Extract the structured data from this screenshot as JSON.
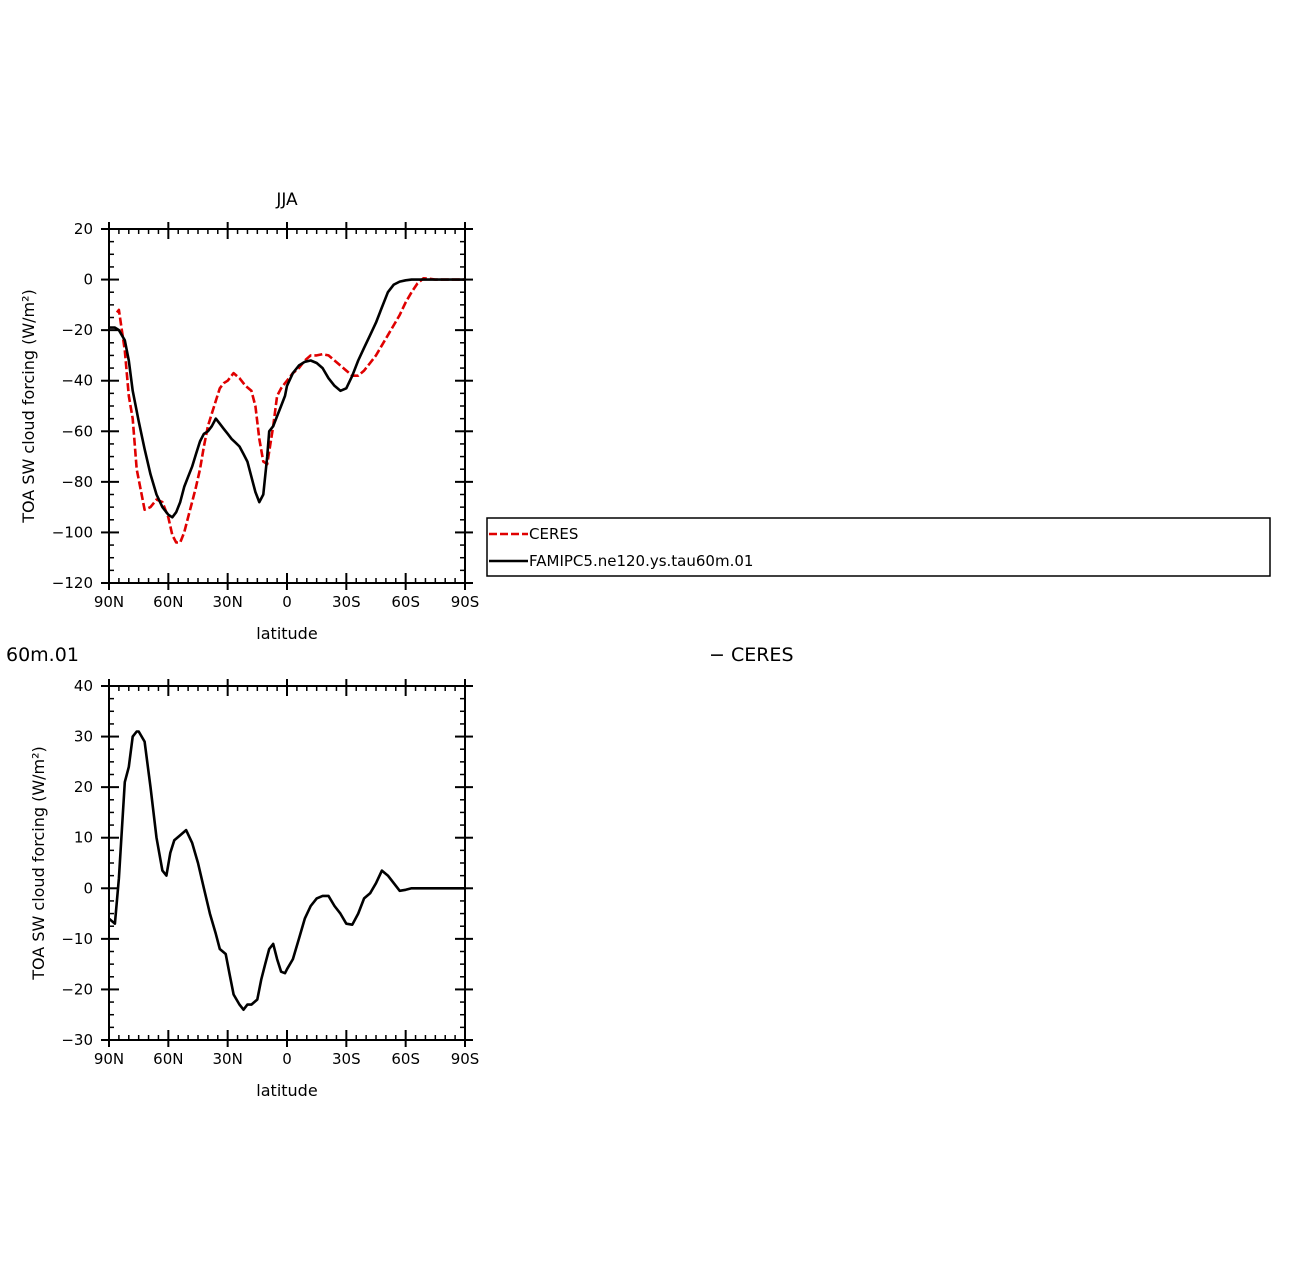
{
  "chart_data": [
    {
      "type": "line",
      "title": "JJA",
      "xlabel": "latitude",
      "ylabel": "TOA SW cloud forcing (W/m²)",
      "xlim": [
        -90,
        90
      ],
      "ylim": [
        -120,
        20
      ],
      "xticks": [
        -90,
        -60,
        -30,
        0,
        30,
        60,
        90
      ],
      "xtick_labels": [
        "90N",
        "60N",
        "30N",
        "0",
        "30S",
        "60S",
        "90S"
      ],
      "yticks": [
        20,
        0,
        -20,
        -40,
        -60,
        -80,
        -100,
        -120
      ],
      "ytick_labels": [
        "20",
        "0",
        "−20",
        "−40",
        "−60",
        "−80",
        "−100",
        "−120"
      ],
      "legend": "right",
      "series": [
        {
          "name": "CERES",
          "color": "#e00000",
          "dash": "dashed",
          "x": [
            -86,
            -85,
            -82,
            -80,
            -78,
            -76,
            -72,
            -69,
            -66,
            -63,
            -60,
            -58,
            -56,
            -54,
            -52,
            -50,
            -48,
            -46,
            -44,
            -42,
            -40,
            -38,
            -36,
            -34,
            -32,
            -30,
            -27,
            -24,
            -21,
            -18,
            -16,
            -14,
            -12,
            -10,
            -9,
            -7,
            -5,
            -3,
            -1,
            0,
            3,
            6,
            9,
            12,
            15,
            18,
            21,
            24,
            27,
            30,
            33,
            36,
            39,
            42,
            45,
            48,
            51,
            54,
            57,
            60,
            63,
            66,
            69,
            72,
            75,
            78,
            81,
            84,
            87,
            90
          ],
          "y": [
            -13,
            -12,
            -28,
            -46,
            -55,
            -75,
            -91,
            -90,
            -87,
            -88,
            -94,
            -101,
            -104,
            -104,
            -100,
            -94,
            -88,
            -82,
            -75,
            -66,
            -58,
            -53,
            -48,
            -43,
            -41,
            -40,
            -37,
            -39,
            -42,
            -44,
            -50,
            -63,
            -72,
            -73,
            -68,
            -58,
            -46,
            -43,
            -41,
            -40,
            -37,
            -35,
            -32,
            -30,
            -30,
            -29.5,
            -30,
            -32,
            -34,
            -36,
            -38,
            -38,
            -36,
            -33,
            -30,
            -26,
            -22,
            -18,
            -14,
            -9,
            -5,
            -1.5,
            0.5,
            0.3,
            0,
            0,
            0,
            0,
            0,
            0
          ]
        },
        {
          "name": "FAMIPC5.ne120.ys.tau60m.01",
          "color": "#000000",
          "dash": "solid",
          "x": [
            -90,
            -87,
            -85,
            -82,
            -80,
            -78,
            -75,
            -72,
            -69,
            -66,
            -63,
            -60,
            -58,
            -56,
            -54,
            -52,
            -50,
            -48,
            -46,
            -44,
            -42,
            -40,
            -38,
            -36,
            -34,
            -32,
            -30,
            -28,
            -26,
            -24,
            -22,
            -20,
            -18,
            -16,
            -14,
            -12,
            -10,
            -9,
            -7,
            -5,
            -3,
            -1,
            0,
            3,
            6,
            9,
            12,
            15,
            18,
            21,
            24,
            27,
            30,
            33,
            36,
            39,
            42,
            45,
            48,
            51,
            54,
            57,
            60,
            63,
            66,
            69,
            72,
            75,
            78,
            81,
            84,
            87,
            90
          ],
          "y": [
            -19,
            -19,
            -20,
            -24,
            -32,
            -44,
            -56,
            -67,
            -77,
            -85,
            -90,
            -93,
            -94,
            -92,
            -88,
            -82,
            -78,
            -74,
            -69,
            -64,
            -61,
            -60,
            -58,
            -55,
            -57,
            -59,
            -61,
            -63,
            -64.5,
            -66,
            -69,
            -72,
            -78,
            -84,
            -88,
            -85,
            -70,
            -60,
            -58,
            -54,
            -50,
            -46,
            -42,
            -37,
            -34,
            -32.5,
            -32,
            -33,
            -35,
            -39,
            -42,
            -44,
            -43,
            -38,
            -32,
            -27,
            -22,
            -17,
            -11,
            -5,
            -2,
            -0.8,
            -0.3,
            0,
            0,
            0,
            0,
            0,
            0,
            0,
            0,
            0,
            0
          ]
        }
      ]
    },
    {
      "type": "line",
      "title_left": "60m.01",
      "title_right": "− CERES",
      "xlabel": "latitude",
      "ylabel": "TOA SW cloud forcing (W/m²)",
      "xlim": [
        -90,
        90
      ],
      "ylim": [
        -30,
        40
      ],
      "xticks": [
        -90,
        -60,
        -30,
        0,
        30,
        60,
        90
      ],
      "xtick_labels": [
        "90N",
        "60N",
        "30N",
        "0",
        "30S",
        "60S",
        "90S"
      ],
      "yticks": [
        40,
        30,
        20,
        10,
        0,
        -10,
        -20,
        -30
      ],
      "ytick_labels": [
        "40",
        "30",
        "20",
        "10",
        "0",
        "−10",
        "−20",
        "−30"
      ],
      "series": [
        {
          "color": "#000000",
          "dash": "solid",
          "x": [
            -90,
            -87,
            -85,
            -82,
            -80,
            -78,
            -76,
            -75,
            -72,
            -69,
            -66,
            -63,
            -61,
            -59,
            -57,
            -54,
            -51,
            -48,
            -45,
            -42,
            -39,
            -36,
            -34,
            -31,
            -29,
            -27,
            -24,
            -22,
            -20,
            -18,
            -15,
            -13,
            -11,
            -9,
            -7,
            -5,
            -3,
            -1,
            0,
            3,
            6,
            9,
            12,
            15,
            18,
            21,
            24,
            27,
            30,
            33,
            36,
            39,
            42,
            45,
            48,
            51,
            54,
            57,
            60,
            63,
            66,
            69,
            72,
            75,
            78,
            81,
            84,
            87,
            90
          ],
          "y": [
            -6,
            -7,
            2,
            21,
            24,
            30,
            31,
            31,
            29,
            20,
            10,
            3.5,
            2.5,
            7,
            9.5,
            10.5,
            11.5,
            9,
            5,
            0,
            -5,
            -9,
            -12,
            -13,
            -17,
            -21,
            -23,
            -24,
            -23,
            -23,
            -22,
            -18,
            -15,
            -12,
            -11,
            -14,
            -16.5,
            -16.8,
            -16,
            -14,
            -10,
            -6,
            -3.5,
            -2,
            -1.5,
            -1.5,
            -3.5,
            -5,
            -7,
            -7.2,
            -5,
            -2,
            -1,
            1,
            3.5,
            2.5,
            1,
            -0.5,
            -0.3,
            0,
            0,
            0,
            0,
            0,
            0,
            0,
            0,
            0,
            0
          ]
        }
      ]
    }
  ]
}
